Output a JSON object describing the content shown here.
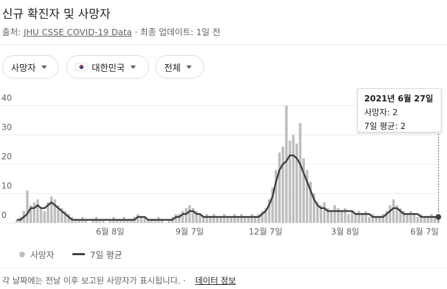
{
  "header": {
    "title": "신규 확진자 및 사망자",
    "source_prefix": "출처:",
    "source_link": "JHU CSSE COVID-19 Data",
    "source_suffix": "· 최종 업데이트: 1일 전"
  },
  "filters": [
    "사망자",
    "대한민국",
    "전체"
  ],
  "tooltip": {
    "date": "2021년 6월 27일",
    "rows": [
      {
        "label": "사망자:",
        "value": 2
      },
      {
        "label": "7일 평균:",
        "value": 2
      }
    ]
  },
  "footer": {
    "note": "각 날짜에는 전날 이후 보고된 사망자가 표시됩니다.",
    "link": "데이터 정보"
  },
  "chart_data": {
    "type": "bar",
    "ylim": [
      0,
      42
    ],
    "yticks": [
      0,
      10,
      20,
      30,
      40
    ],
    "grid": true,
    "categories": [
      null,
      null,
      null,
      null,
      null,
      null,
      null,
      null,
      null,
      null,
      null,
      null,
      null,
      null,
      null,
      null,
      null,
      null,
      null,
      null,
      null,
      null,
      null,
      null,
      null,
      null,
      null,
      "6월 8일",
      null,
      null,
      null,
      null,
      null,
      null,
      null,
      null,
      null,
      null,
      null,
      null,
      null,
      null,
      null,
      null,
      null,
      null,
      null,
      null,
      null,
      null,
      "9월 7일",
      null,
      null,
      null,
      null,
      null,
      null,
      null,
      null,
      null,
      null,
      null,
      null,
      null,
      null,
      null,
      null,
      null,
      null,
      null,
      null,
      null,
      "12월 7일",
      null,
      null,
      null,
      null,
      null,
      null,
      null,
      null,
      null,
      null,
      null,
      null,
      null,
      null,
      null,
      null,
      null,
      null,
      null,
      null,
      null,
      null,
      "3월 8일",
      null,
      null,
      null,
      null,
      null,
      null,
      null,
      null,
      null,
      null,
      null,
      null,
      null,
      null,
      null,
      null,
      null,
      null,
      null,
      null,
      null,
      null,
      "6월 7일",
      null,
      null,
      null,
      null
    ],
    "series": [
      {
        "name": "사망자",
        "type": "bar",
        "color": "#bdbdbd",
        "values": [
          1,
          2,
          4,
          11,
          6,
          7,
          8,
          5,
          4,
          7,
          9,
          8,
          6,
          5,
          4,
          3,
          2,
          1,
          1,
          2,
          1,
          0,
          1,
          2,
          1,
          1,
          0,
          1,
          2,
          1,
          1,
          2,
          1,
          1,
          2,
          3,
          2,
          2,
          1,
          1,
          1,
          2,
          1,
          0,
          1,
          2,
          3,
          3,
          4,
          5,
          6,
          5,
          4,
          3,
          2,
          3,
          2,
          3,
          2,
          2,
          3,
          2,
          2,
          3,
          2,
          3,
          2,
          2,
          3,
          2,
          3,
          4,
          5,
          8,
          12,
          18,
          24,
          26,
          40,
          28,
          30,
          27,
          34,
          22,
          18,
          14,
          10,
          7,
          6,
          7,
          5,
          4,
          6,
          5,
          4,
          5,
          3,
          4,
          3,
          4,
          3,
          4,
          2,
          3,
          2,
          2,
          3,
          4,
          6,
          8,
          6,
          5,
          4,
          3,
          4,
          3,
          2,
          3,
          2,
          2,
          3,
          2,
          2
        ]
      },
      {
        "name": "7일 평균",
        "type": "line",
        "color": "#3c4043",
        "values": [
          1,
          1,
          2,
          3,
          5,
          5,
          6,
          5,
          5,
          6,
          7,
          6,
          5,
          4,
          3,
          2,
          1,
          1,
          1,
          1,
          1,
          1,
          1,
          1,
          1,
          1,
          1,
          1,
          1,
          1,
          1,
          1,
          1,
          1,
          1,
          2,
          2,
          2,
          1,
          1,
          1,
          1,
          1,
          1,
          1,
          1,
          2,
          2,
          3,
          3,
          4,
          4,
          3,
          3,
          2,
          2,
          2,
          2,
          2,
          2,
          2,
          2,
          2,
          2,
          2,
          2,
          2,
          2,
          2,
          2,
          2,
          3,
          4,
          6,
          9,
          14,
          18,
          20,
          21,
          23,
          23,
          22,
          20,
          17,
          14,
          11,
          8,
          6,
          5,
          5,
          4,
          4,
          4,
          4,
          4,
          4,
          4,
          4,
          3,
          3,
          3,
          3,
          3,
          2,
          2,
          2,
          2,
          3,
          4,
          5,
          5,
          4,
          3,
          3,
          3,
          3,
          3,
          2,
          2,
          2,
          2,
          2,
          2
        ]
      }
    ]
  }
}
